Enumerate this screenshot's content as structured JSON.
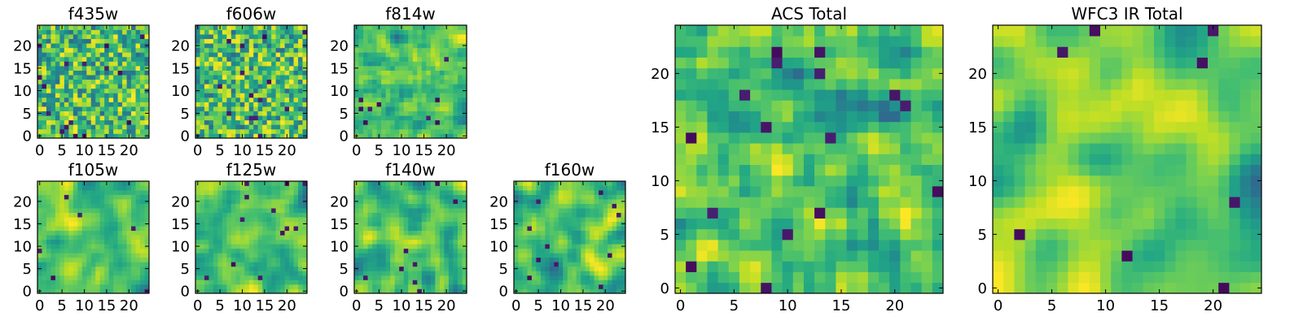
{
  "figure": {
    "background": "#ffffff"
  },
  "chart_data": [
    {
      "type": "heatmap",
      "title": "f435w",
      "grid": false,
      "rows": 25,
      "cols": 25,
      "xlim": [
        0,
        24
      ],
      "ylim": [
        0,
        24
      ],
      "xticks": [
        0,
        5,
        10,
        15,
        20
      ],
      "yticks": [
        0,
        5,
        10,
        15,
        20
      ],
      "colormap": "viridis",
      "z_description": "pixel noise, high-frequency",
      "smoothness": 0.0,
      "seed": 11,
      "blobs": []
    },
    {
      "type": "heatmap",
      "title": "f606w",
      "grid": false,
      "rows": 25,
      "cols": 25,
      "xlim": [
        0,
        24
      ],
      "ylim": [
        0,
        24
      ],
      "xticks": [
        0,
        5,
        10,
        15,
        20
      ],
      "yticks": [
        0,
        5,
        10,
        15,
        20
      ],
      "colormap": "viridis",
      "smoothness": 0.1,
      "seed": 23,
      "blobs": []
    },
    {
      "type": "heatmap",
      "title": "f814w",
      "grid": false,
      "rows": 25,
      "cols": 25,
      "xlim": [
        0,
        24
      ],
      "ylim": [
        0,
        24
      ],
      "xticks": [
        0,
        5,
        10,
        15,
        20
      ],
      "yticks": [
        0,
        5,
        10,
        15,
        20
      ],
      "colormap": "viridis",
      "smoothness": 0.15,
      "seed": 37,
      "blobs": []
    },
    {
      "type": "heatmap",
      "title": "f105w",
      "grid": false,
      "rows": 25,
      "cols": 25,
      "xlim": [
        0,
        24
      ],
      "ylim": [
        0,
        24
      ],
      "xticks": [
        0,
        5,
        10,
        15,
        20
      ],
      "yticks": [
        0,
        5,
        10,
        15,
        20
      ],
      "colormap": "viridis",
      "smoothness": 0.55,
      "seed": 41,
      "blobs": []
    },
    {
      "type": "heatmap",
      "title": "f125w",
      "grid": false,
      "rows": 25,
      "cols": 25,
      "xlim": [
        0,
        24
      ],
      "ylim": [
        0,
        24
      ],
      "xticks": [
        0,
        5,
        10,
        15,
        20
      ],
      "yticks": [
        0,
        5,
        10,
        15,
        20
      ],
      "colormap": "viridis",
      "smoothness": 0.6,
      "seed": 53,
      "blobs": []
    },
    {
      "type": "heatmap",
      "title": "f140w",
      "grid": false,
      "rows": 25,
      "cols": 25,
      "xlim": [
        0,
        24
      ],
      "ylim": [
        0,
        24
      ],
      "xticks": [
        0,
        5,
        10,
        15,
        20
      ],
      "yticks": [
        0,
        5,
        10,
        15,
        20
      ],
      "colormap": "viridis",
      "smoothness": 0.55,
      "seed": 67,
      "blobs": []
    },
    {
      "type": "heatmap",
      "title": "f160w",
      "grid": false,
      "rows": 25,
      "cols": 25,
      "xlim": [
        0,
        24
      ],
      "ylim": [
        0,
        24
      ],
      "xticks": [
        0,
        5,
        10,
        15,
        20
      ],
      "yticks": [
        0,
        5,
        10,
        15,
        20
      ],
      "colormap": "viridis",
      "smoothness": 0.55,
      "seed": 79,
      "blobs": []
    },
    {
      "type": "heatmap",
      "title": "ACS Total",
      "grid": false,
      "rows": 25,
      "cols": 25,
      "xlim": [
        0,
        24
      ],
      "ylim": [
        0,
        24
      ],
      "xticks": [
        0,
        5,
        10,
        15,
        20
      ],
      "yticks": [
        0,
        5,
        10,
        15,
        20
      ],
      "colormap": "viridis",
      "smoothness": 0.25,
      "seed": 97,
      "blobs": []
    },
    {
      "type": "heatmap",
      "title": "WFC3 IR Total",
      "grid": false,
      "rows": 25,
      "cols": 25,
      "xlim": [
        0,
        24
      ],
      "ylim": [
        0,
        24
      ],
      "xticks": [
        0,
        5,
        10,
        15,
        20
      ],
      "yticks": [
        0,
        5,
        10,
        15,
        20
      ],
      "colormap": "viridis",
      "smoothness": 0.75,
      "seed": 113,
      "blobs": []
    }
  ]
}
